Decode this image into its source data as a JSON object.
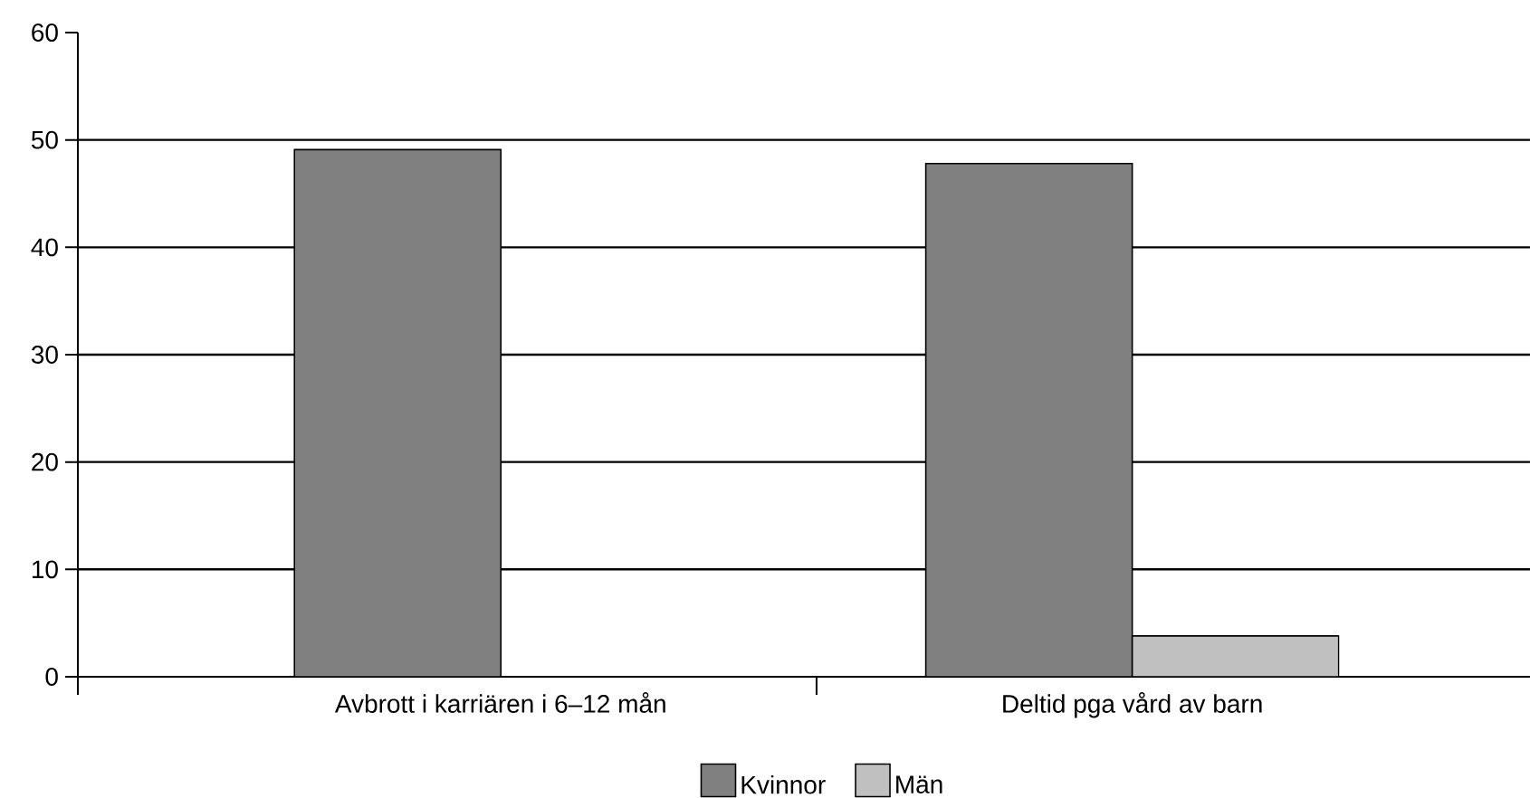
{
  "chart_data": {
    "type": "bar",
    "categories": [
      "Avbrott i karriären i 6–12 mån",
      "Deltid pga vård av barn"
    ],
    "series": [
      {
        "name": "Kvinnor",
        "color": "#808080",
        "values": [
          49.1,
          47.8
        ]
      },
      {
        "name": "Män",
        "color": "#c0c0c0",
        "values": [
          null,
          3.8
        ]
      }
    ],
    "ylim": [
      0,
      60
    ],
    "yticks": [
      0,
      10,
      20,
      30,
      40,
      50,
      60
    ],
    "grid": "y",
    "legend": "bottom"
  }
}
